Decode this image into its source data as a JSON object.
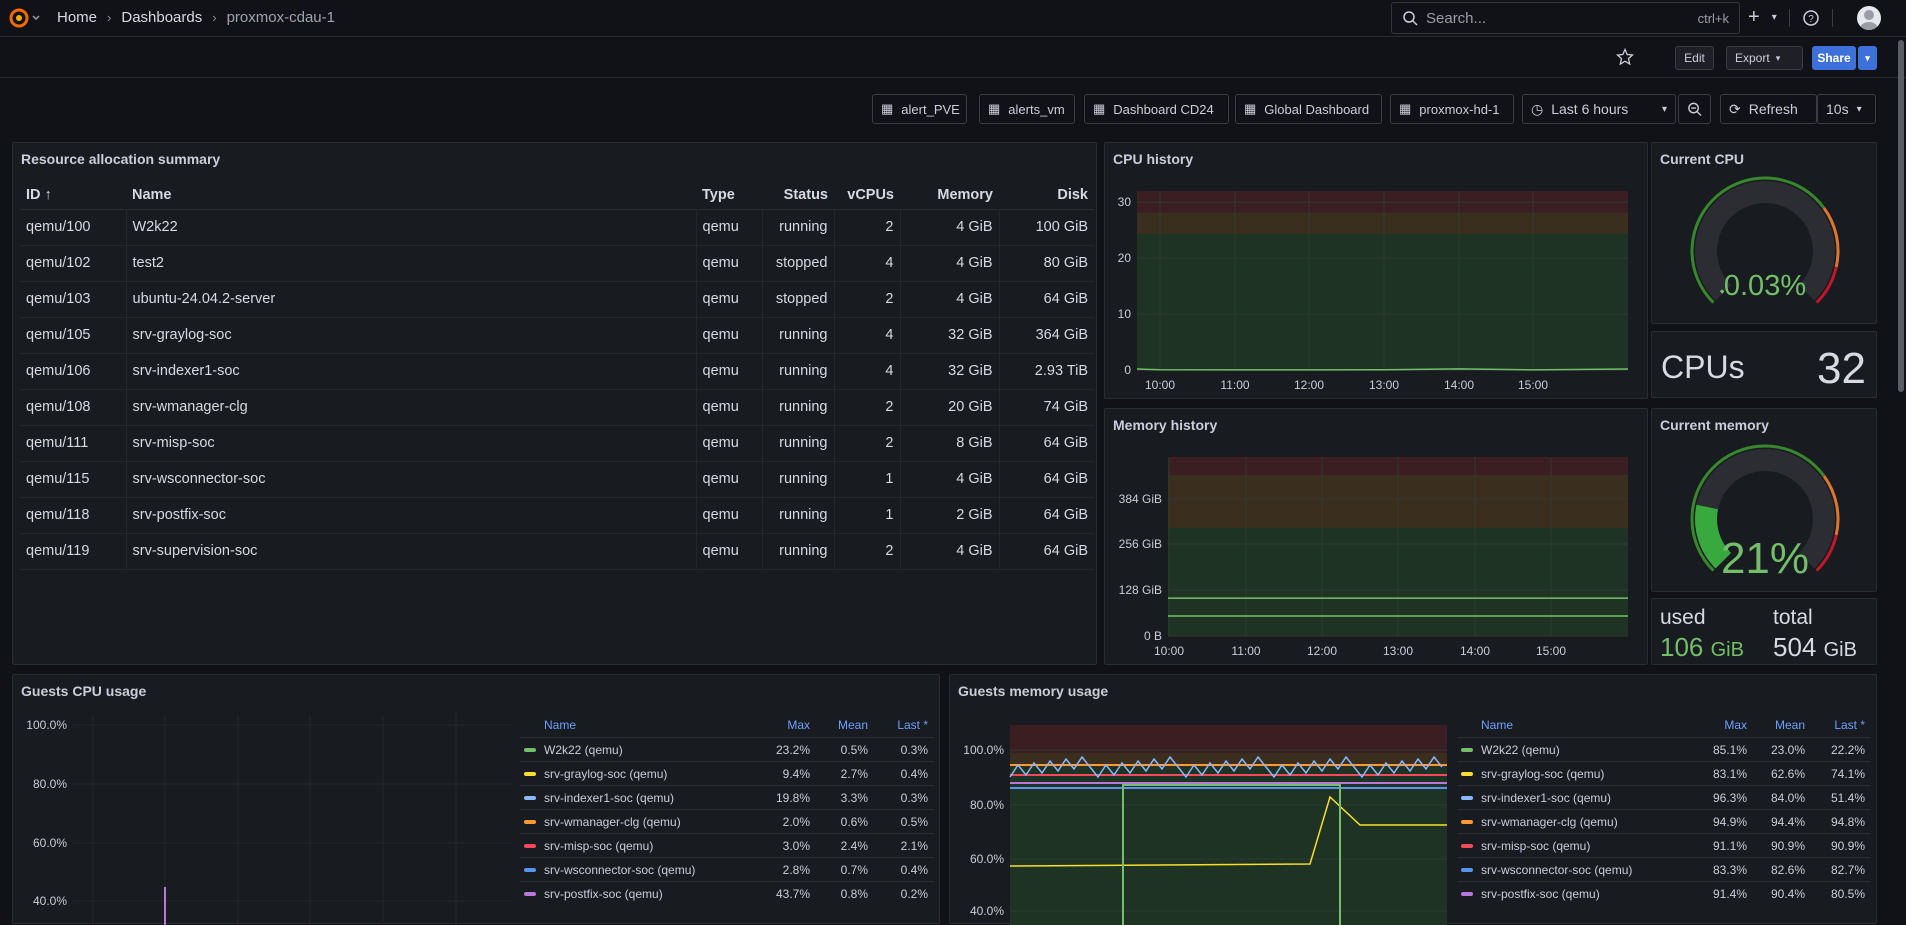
{
  "breadcrumb": {
    "home": "Home",
    "dashboards": "Dashboards",
    "current": "proxmox-cdau-1"
  },
  "search": {
    "placeholder": "Search...",
    "shortcut": "ctrl+k"
  },
  "toolbar": {
    "edit": "Edit",
    "export": "Export",
    "share": "Share"
  },
  "links": [
    "alert_PVE",
    "alerts_vm",
    "Dashboard CD24",
    "Global Dashboard",
    "proxmox-hd-1"
  ],
  "timepicker": {
    "range": "Last 6 hours",
    "refresh": "Refresh",
    "interval": "10s"
  },
  "resource": {
    "title": "Resource allocation summary",
    "columns": [
      "ID",
      "Name",
      "Type",
      "Status",
      "vCPUs",
      "Memory",
      "Disk"
    ],
    "rows": [
      [
        "qemu/100",
        "W2k22",
        "qemu",
        "running",
        "2",
        "4 GiB",
        "100 GiB"
      ],
      [
        "qemu/102",
        "test2",
        "qemu",
        "stopped",
        "4",
        "4 GiB",
        "80 GiB"
      ],
      [
        "qemu/103",
        "ubuntu-24.04.2-server",
        "qemu",
        "stopped",
        "2",
        "4 GiB",
        "64 GiB"
      ],
      [
        "qemu/105",
        "srv-graylog-soc",
        "qemu",
        "running",
        "4",
        "32 GiB",
        "364 GiB"
      ],
      [
        "qemu/106",
        "srv-indexer1-soc",
        "qemu",
        "running",
        "4",
        "32 GiB",
        "2.93 TiB"
      ],
      [
        "qemu/108",
        "srv-wmanager-clg",
        "qemu",
        "running",
        "2",
        "20 GiB",
        "74 GiB"
      ],
      [
        "qemu/111",
        "srv-misp-soc",
        "qemu",
        "running",
        "2",
        "8 GiB",
        "64 GiB"
      ],
      [
        "qemu/115",
        "srv-wsconnector-soc",
        "qemu",
        "running",
        "1",
        "4 GiB",
        "64 GiB"
      ],
      [
        "qemu/118",
        "srv-postfix-soc",
        "qemu",
        "running",
        "1",
        "2 GiB",
        "64 GiB"
      ],
      [
        "qemu/119",
        "srv-supervision-soc",
        "qemu",
        "running",
        "2",
        "4 GiB",
        "64 GiB"
      ]
    ]
  },
  "cpu_history": {
    "title": "CPU history"
  },
  "mem_history": {
    "title": "Memory history"
  },
  "current_cpu": {
    "title": "Current CPU",
    "value": "0.03%",
    "fraction": 0.0003
  },
  "cpus": {
    "label": "CPUs",
    "value": "32"
  },
  "current_memory": {
    "title": "Current memory",
    "value": "21%",
    "fraction": 0.21
  },
  "mem_stats": {
    "used_label": "used",
    "used_value": "106",
    "used_unit": "GiB",
    "total_label": "total",
    "total_value": "504",
    "total_unit": "GiB"
  },
  "guests_cpu": {
    "title": "Guests CPU usage",
    "legend_headers": [
      "Name",
      "Max",
      "Mean",
      "Last *"
    ],
    "rows": [
      {
        "name": "W2k22 (qemu)",
        "max": "23.2%",
        "mean": "0.5%",
        "last": "0.3%",
        "color": "#73bf69"
      },
      {
        "name": "srv-graylog-soc (qemu)",
        "max": "9.4%",
        "mean": "2.7%",
        "last": "0.4%",
        "color": "#fade2a"
      },
      {
        "name": "srv-indexer1-soc (qemu)",
        "max": "19.8%",
        "mean": "3.3%",
        "last": "0.3%",
        "color": "#8ab8ff"
      },
      {
        "name": "srv-wmanager-clg (qemu)",
        "max": "2.0%",
        "mean": "0.6%",
        "last": "0.5%",
        "color": "#ff9830"
      },
      {
        "name": "srv-misp-soc (qemu)",
        "max": "3.0%",
        "mean": "2.4%",
        "last": "2.1%",
        "color": "#f2495c"
      },
      {
        "name": "srv-wsconnector-soc (qemu)",
        "max": "2.8%",
        "mean": "0.7%",
        "last": "0.4%",
        "color": "#5794f2"
      },
      {
        "name": "srv-postfix-soc (qemu)",
        "max": "43.7%",
        "mean": "0.8%",
        "last": "0.2%",
        "color": "#b877d9"
      }
    ]
  },
  "guests_mem": {
    "title": "Guests memory usage",
    "legend_headers": [
      "Name",
      "Max",
      "Mean",
      "Last *"
    ],
    "rows": [
      {
        "name": "W2k22 (qemu)",
        "max": "85.1%",
        "mean": "23.0%",
        "last": "22.2%",
        "color": "#73bf69"
      },
      {
        "name": "srv-graylog-soc (qemu)",
        "max": "83.1%",
        "mean": "62.6%",
        "last": "74.1%",
        "color": "#fade2a"
      },
      {
        "name": "srv-indexer1-soc (qemu)",
        "max": "96.3%",
        "mean": "84.0%",
        "last": "51.4%",
        "color": "#8ab8ff"
      },
      {
        "name": "srv-wmanager-clg (qemu)",
        "max": "94.9%",
        "mean": "94.4%",
        "last": "94.8%",
        "color": "#ff9830"
      },
      {
        "name": "srv-misp-soc (qemu)",
        "max": "91.1%",
        "mean": "90.9%",
        "last": "90.9%",
        "color": "#f2495c"
      },
      {
        "name": "srv-wsconnector-soc (qemu)",
        "max": "83.3%",
        "mean": "82.6%",
        "last": "82.7%",
        "color": "#5794f2"
      },
      {
        "name": "srv-postfix-soc (qemu)",
        "max": "91.4%",
        "mean": "90.4%",
        "last": "80.5%",
        "color": "#b877d9"
      }
    ]
  },
  "chart_data": [
    {
      "type": "line",
      "title": "CPU history",
      "x_ticks": [
        "10:00",
        "11:00",
        "12:00",
        "13:00",
        "14:00",
        "15:00"
      ],
      "y_ticks": [
        "0",
        "10",
        "20",
        "30"
      ],
      "ylim": [
        0,
        32
      ],
      "series": [
        {
          "values": [
            0.05,
            0.03,
            0.03,
            0.04,
            0.2,
            0.03
          ]
        }
      ]
    },
    {
      "type": "line",
      "title": "Memory history",
      "x_ticks": [
        "10:00",
        "11:00",
        "12:00",
        "13:00",
        "14:00",
        "15:00"
      ],
      "y_ticks": [
        "0 B",
        "128 GiB",
        "256 GiB",
        "384 GiB"
      ],
      "series": [
        {
          "values_gib": [
            106,
            106,
            106,
            106,
            106,
            106
          ]
        },
        {
          "values_gib": [
            56,
            56,
            56,
            56,
            56,
            56
          ]
        }
      ]
    },
    {
      "type": "line",
      "title": "Guests CPU usage",
      "y_ticks": [
        "40.0%",
        "60.0%",
        "80.0%",
        "100.0%"
      ]
    },
    {
      "type": "line",
      "title": "Guests memory usage",
      "y_ticks": [
        "40.0%",
        "60.0%",
        "80.0%",
        "100.0%"
      ]
    }
  ]
}
